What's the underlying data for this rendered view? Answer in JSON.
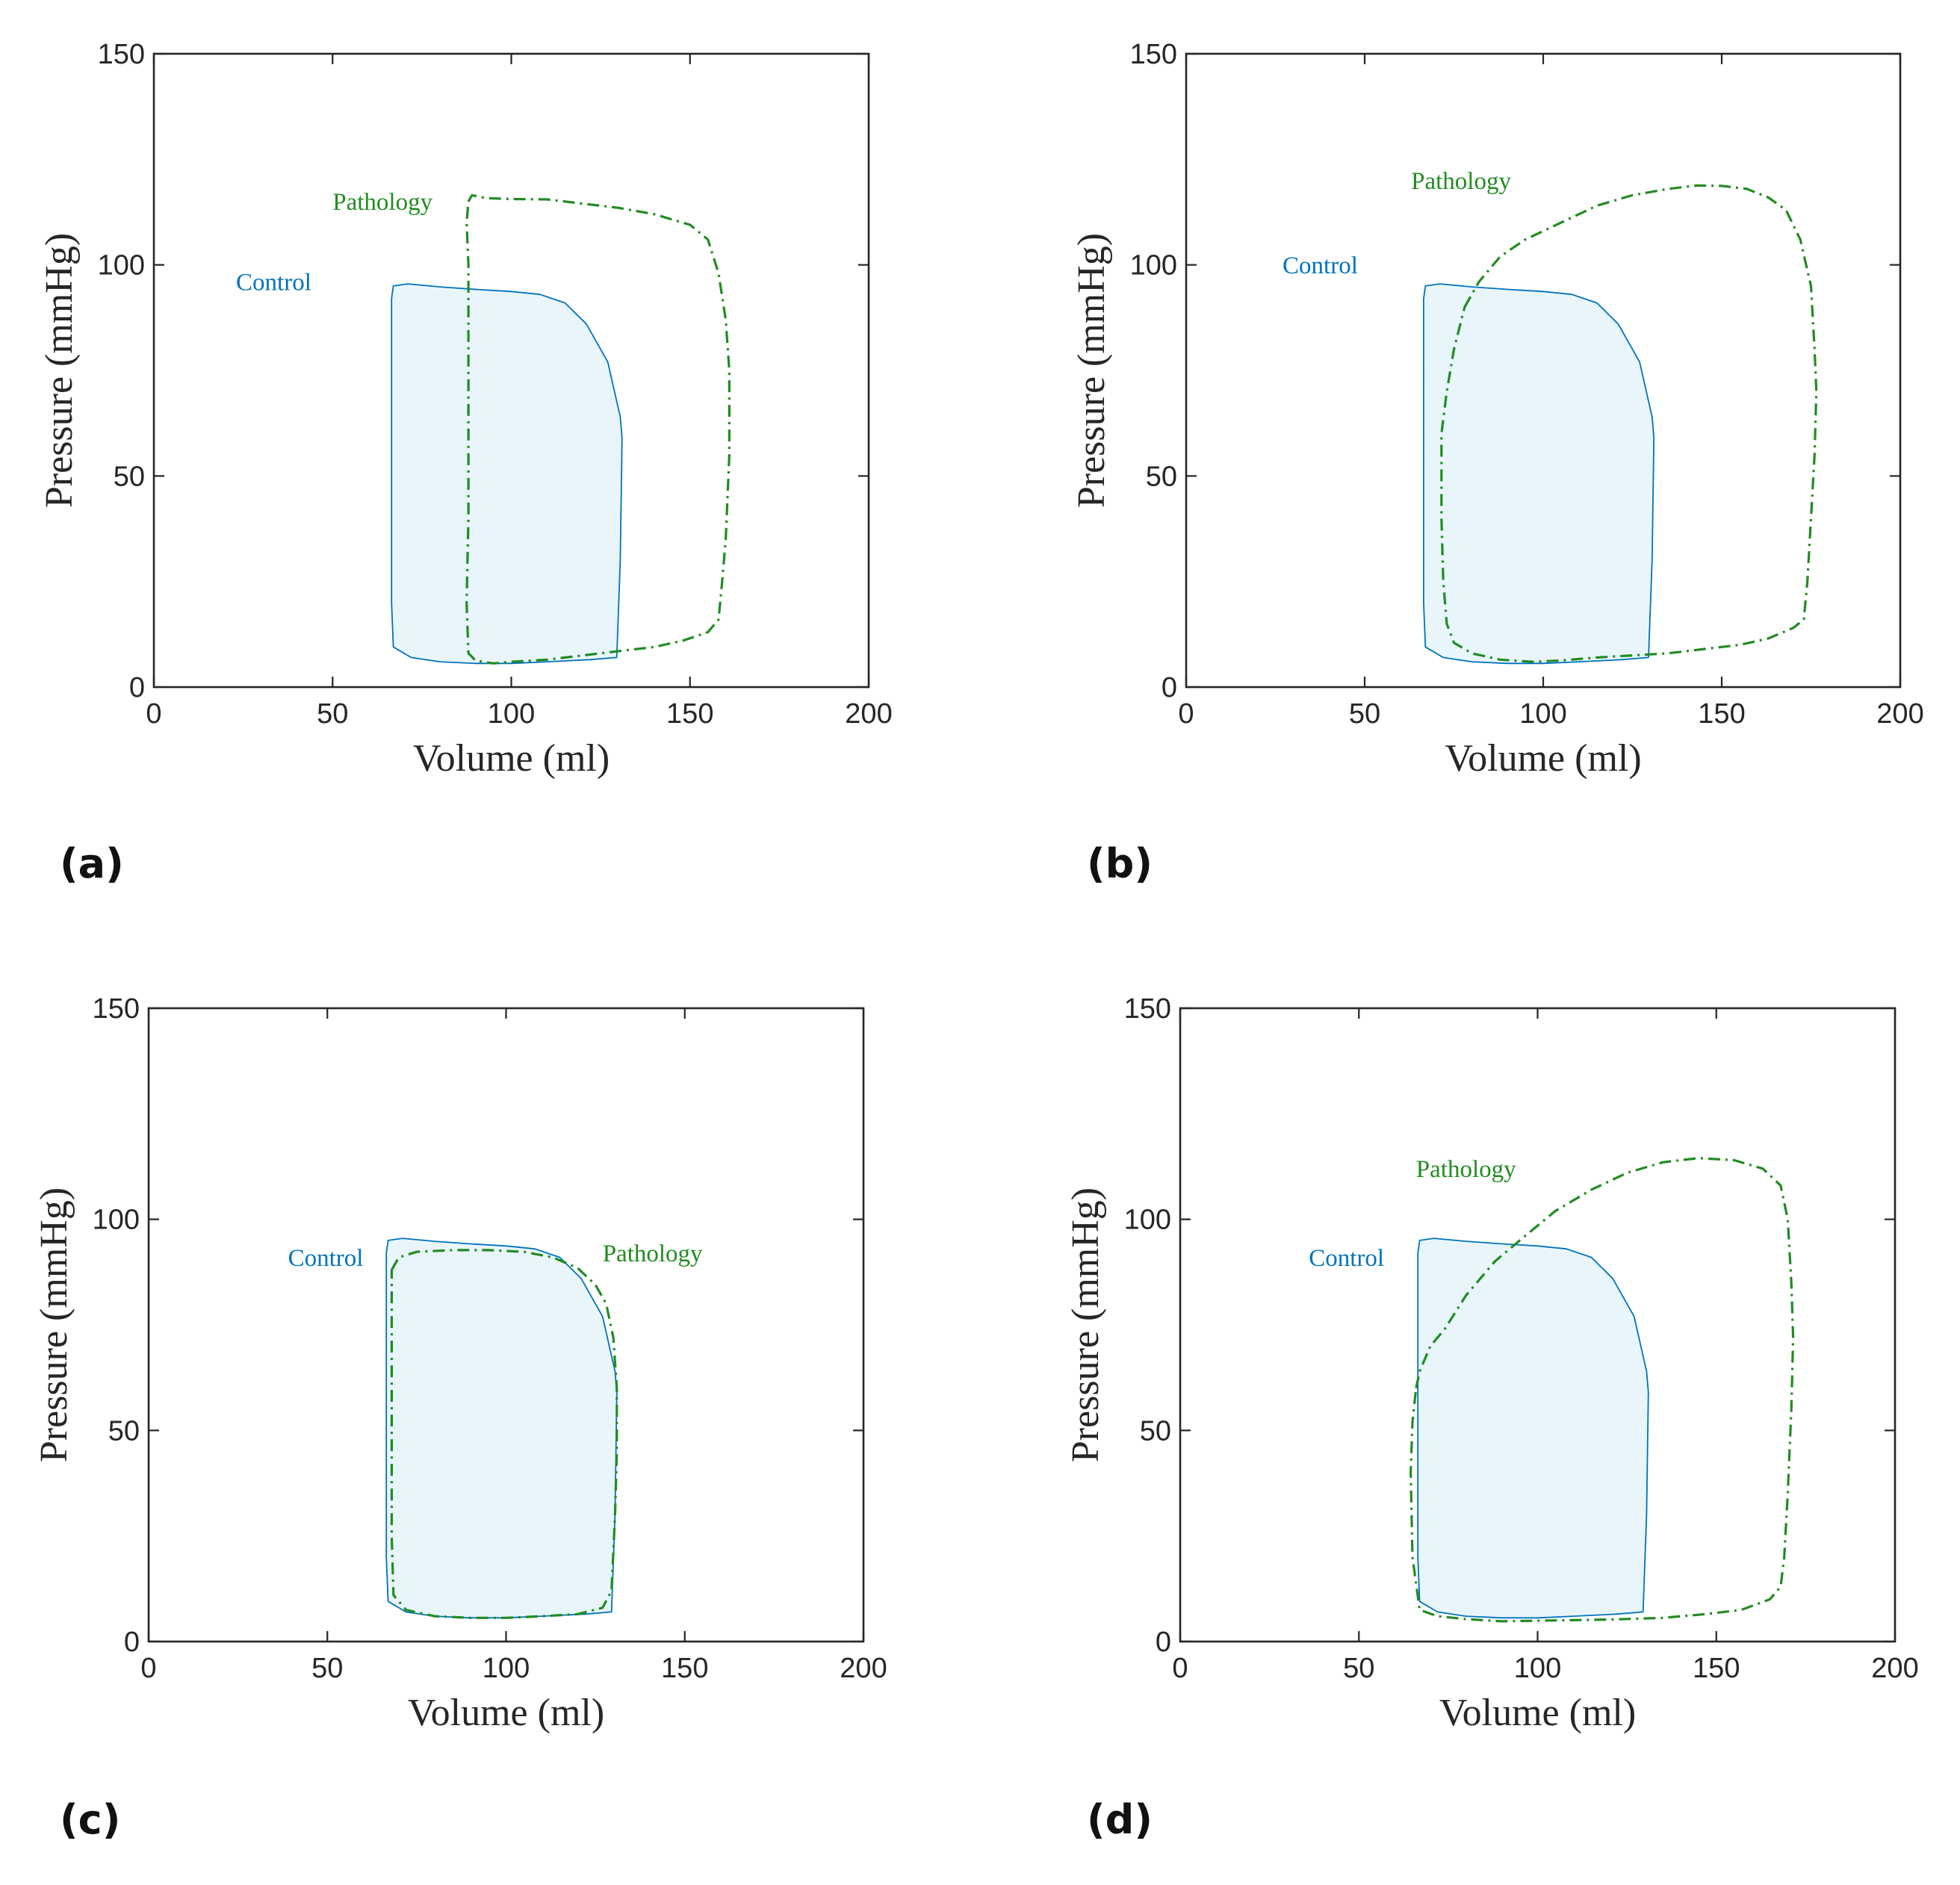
{
  "colors": {
    "control": "#0072bd",
    "control_fill": "#e8f6fb",
    "pathology": "#228b22",
    "axis": "#262626"
  },
  "chart_data": [
    {
      "panel_label": "(a)",
      "type": "line",
      "xlabel": "Volume (ml)",
      "ylabel": "Pressure (mmHg)",
      "xlim": [
        0,
        200
      ],
      "ylim": [
        0,
        150
      ],
      "xticks": [
        0,
        50,
        100,
        150,
        200
      ],
      "yticks": [
        0,
        50,
        100,
        150
      ],
      "series": [
        {
          "name": "Control",
          "label": "Control",
          "label_at": [
            23,
            94
          ],
          "style": "solid-filled",
          "points": [
            [
              67,
              95
            ],
            [
              71,
              95.5
            ],
            [
              80,
              94.8
            ],
            [
              90,
              94.2
            ],
            [
              100,
              93.7
            ],
            [
              108,
              93
            ],
            [
              115,
              91
            ],
            [
              121,
              86
            ],
            [
              127,
              77
            ],
            [
              130.5,
              64
            ],
            [
              131,
              59
            ],
            [
              130.5,
              30
            ],
            [
              129.5,
              7
            ],
            [
              122,
              6.5
            ],
            [
              110,
              6
            ],
            [
              100,
              5.6
            ],
            [
              90,
              5.6
            ],
            [
              80,
              6
            ],
            [
              72,
              7
            ],
            [
              67,
              9.5
            ],
            [
              66.5,
              20
            ],
            [
              66.5,
              50
            ],
            [
              66.5,
              75
            ],
            [
              66.5,
              92
            ],
            [
              67,
              95
            ]
          ]
        },
        {
          "name": "Pathology",
          "label": "Pathology",
          "label_at": [
            50,
            113
          ],
          "style": "dashdot",
          "points": [
            [
              88,
              115
            ],
            [
              89,
              116.5
            ],
            [
              93,
              115.8
            ],
            [
              100,
              115.6
            ],
            [
              110,
              115.5
            ],
            [
              120,
              114.5
            ],
            [
              130,
              113.5
            ],
            [
              140,
              112
            ],
            [
              150,
              109.5
            ],
            [
              155,
              106
            ],
            [
              158,
              98
            ],
            [
              160,
              87
            ],
            [
              161,
              75
            ],
            [
              161,
              55
            ],
            [
              160,
              35
            ],
            [
              159,
              25
            ],
            [
              158,
              16
            ],
            [
              155,
              13
            ],
            [
              148,
              11
            ],
            [
              140,
              9.5
            ],
            [
              130,
              8.5
            ],
            [
              120,
              7.5
            ],
            [
              110,
              6.5
            ],
            [
              100,
              6
            ],
            [
              95,
              5.6
            ],
            [
              90,
              6.3
            ],
            [
              88,
              8
            ],
            [
              87.5,
              20
            ],
            [
              88,
              40
            ],
            [
              88,
              60
            ],
            [
              88,
              80
            ],
            [
              88,
              100
            ],
            [
              87.5,
              110
            ],
            [
              88,
              115
            ]
          ]
        }
      ]
    },
    {
      "panel_label": "(b)",
      "type": "line",
      "xlabel": "Volume (ml)",
      "ylabel": "Pressure (mmHg)",
      "xlim": [
        0,
        200
      ],
      "ylim": [
        0,
        150
      ],
      "xticks": [
        0,
        50,
        100,
        150,
        200
      ],
      "yticks": [
        0,
        50,
        100,
        150
      ],
      "series": [
        {
          "name": "Control",
          "label": "Control",
          "label_at": [
            27,
            98
          ],
          "style": "solid-filled",
          "points": [
            [
              67,
              95
            ],
            [
              71,
              95.5
            ],
            [
              80,
              94.8
            ],
            [
              90,
              94.2
            ],
            [
              100,
              93.7
            ],
            [
              108,
              93
            ],
            [
              115,
              91
            ],
            [
              121,
              86
            ],
            [
              127,
              77
            ],
            [
              130.5,
              64
            ],
            [
              131,
              59
            ],
            [
              130.5,
              30
            ],
            [
              129.5,
              7
            ],
            [
              122,
              6.5
            ],
            [
              110,
              6
            ],
            [
              100,
              5.6
            ],
            [
              90,
              5.6
            ],
            [
              80,
              6
            ],
            [
              72,
              7
            ],
            [
              67,
              9.5
            ],
            [
              66.5,
              20
            ],
            [
              66.5,
              50
            ],
            [
              66.5,
              75
            ],
            [
              66.5,
              92
            ],
            [
              67,
              95
            ]
          ]
        },
        {
          "name": "Pathology",
          "label": "Pathology",
          "label_at": [
            63,
            118
          ],
          "style": "dashdot",
          "points": [
            [
              78,
              90
            ],
            [
              82,
              96
            ],
            [
              88,
              102
            ],
            [
              95,
              106
            ],
            [
              105,
              110
            ],
            [
              115,
              114
            ],
            [
              125,
              116.5
            ],
            [
              135,
              118
            ],
            [
              143,
              118.8
            ],
            [
              150,
              118.7
            ],
            [
              157,
              118
            ],
            [
              163,
              116
            ],
            [
              168,
              113
            ],
            [
              172,
              106
            ],
            [
              175,
              95
            ],
            [
              176,
              80
            ],
            [
              176.5,
              70
            ],
            [
              176,
              55
            ],
            [
              175,
              40
            ],
            [
              174,
              25
            ],
            [
              173,
              16
            ],
            [
              170,
              14
            ],
            [
              163,
              11.5
            ],
            [
              155,
              10
            ],
            [
              145,
              9
            ],
            [
              135,
              8
            ],
            [
              125,
              7.5
            ],
            [
              115,
              7
            ],
            [
              105,
              6.3
            ],
            [
              97,
              6
            ],
            [
              88,
              6.5
            ],
            [
              80,
              8
            ],
            [
              75,
              10.5
            ],
            [
              73,
              15
            ],
            [
              72,
              25
            ],
            [
              71.5,
              40
            ],
            [
              71.5,
              60
            ],
            [
              73,
              70
            ],
            [
              75,
              80
            ],
            [
              78,
              90
            ]
          ]
        }
      ]
    },
    {
      "panel_label": "(c)",
      "type": "line",
      "xlabel": "Volume (ml)",
      "ylabel": "Pressure (mmHg)",
      "xlim": [
        0,
        200
      ],
      "ylim": [
        0,
        150
      ],
      "xticks": [
        0,
        50,
        100,
        150,
        200
      ],
      "yticks": [
        0,
        50,
        100,
        150
      ],
      "series": [
        {
          "name": "Control",
          "label": "Control",
          "label_at": [
            39,
            89
          ],
          "style": "solid-filled",
          "points": [
            [
              67,
              95
            ],
            [
              71,
              95.5
            ],
            [
              80,
              94.8
            ],
            [
              90,
              94.2
            ],
            [
              100,
              93.7
            ],
            [
              108,
              93
            ],
            [
              115,
              91
            ],
            [
              121,
              86
            ],
            [
              127,
              77
            ],
            [
              130.5,
              64
            ],
            [
              131,
              59
            ],
            [
              130.5,
              30
            ],
            [
              129.5,
              7
            ],
            [
              122,
              6.5
            ],
            [
              110,
              6
            ],
            [
              100,
              5.6
            ],
            [
              90,
              5.6
            ],
            [
              80,
              6
            ],
            [
              72,
              7
            ],
            [
              67,
              9.5
            ],
            [
              66.5,
              20
            ],
            [
              66.5,
              50
            ],
            [
              66.5,
              75
            ],
            [
              66.5,
              92
            ],
            [
              67,
              95
            ]
          ]
        },
        {
          "name": "Pathology",
          "label": "Pathology",
          "label_at": [
            127,
            90
          ],
          "style": "dashdot",
          "points": [
            [
              68,
              88
            ],
            [
              70,
              91
            ],
            [
              75,
              92.3
            ],
            [
              85,
              92.7
            ],
            [
              95,
              92.7
            ],
            [
              105,
              92.3
            ],
            [
              113,
              91
            ],
            [
              120,
              88.5
            ],
            [
              125,
              84.5
            ],
            [
              128,
              80
            ],
            [
              130,
              72
            ],
            [
              131,
              60
            ],
            [
              131,
              45
            ],
            [
              130.5,
              30
            ],
            [
              129.5,
              12
            ],
            [
              127,
              8
            ],
            [
              120,
              6.5
            ],
            [
              110,
              6
            ],
            [
              100,
              5.6
            ],
            [
              90,
              5.6
            ],
            [
              80,
              6
            ],
            [
              72,
              7.5
            ],
            [
              68.5,
              11
            ],
            [
              68,
              25
            ],
            [
              68,
              50
            ],
            [
              68,
              75
            ],
            [
              68,
              88
            ]
          ]
        }
      ]
    },
    {
      "panel_label": "(d)",
      "type": "line",
      "xlabel": "Volume (ml)",
      "ylabel": "Pressure (mmHg)",
      "xlim": [
        0,
        200
      ],
      "ylim": [
        0,
        150
      ],
      "xticks": [
        0,
        50,
        100,
        150,
        200
      ],
      "yticks": [
        0,
        50,
        100,
        150
      ],
      "series": [
        {
          "name": "Control",
          "label": "Control",
          "label_at": [
            36,
            89
          ],
          "style": "solid-filled",
          "points": [
            [
              67,
              95
            ],
            [
              71,
              95.5
            ],
            [
              80,
              94.8
            ],
            [
              90,
              94.2
            ],
            [
              100,
              93.7
            ],
            [
              108,
              93
            ],
            [
              115,
              91
            ],
            [
              121,
              86
            ],
            [
              127,
              77
            ],
            [
              130.5,
              64
            ],
            [
              131,
              59
            ],
            [
              130.5,
              30
            ],
            [
              129.5,
              7
            ],
            [
              122,
              6.5
            ],
            [
              110,
              6
            ],
            [
              100,
              5.6
            ],
            [
              90,
              5.6
            ],
            [
              80,
              6
            ],
            [
              72,
              7
            ],
            [
              67,
              9.5
            ],
            [
              66.5,
              20
            ],
            [
              66.5,
              50
            ],
            [
              66.5,
              75
            ],
            [
              66.5,
              92
            ],
            [
              67,
              95
            ]
          ]
        },
        {
          "name": "Pathology",
          "label": "Pathology",
          "label_at": [
            66,
            110
          ],
          "style": "dashdot",
          "points": [
            [
              66,
              60
            ],
            [
              67,
              64
            ],
            [
              70,
              70
            ],
            [
              74,
              74
            ],
            [
              80,
              82
            ],
            [
              88,
              90
            ],
            [
              95,
              95
            ],
            [
              105,
              102
            ],
            [
              115,
              107
            ],
            [
              125,
              111
            ],
            [
              135,
              113.5
            ],
            [
              145,
              114.5
            ],
            [
              155,
              114
            ],
            [
              163,
              112
            ],
            [
              168,
              108
            ],
            [
              170,
              100
            ],
            [
              171,
              85
            ],
            [
              171.5,
              72
            ],
            [
              171,
              55
            ],
            [
              170,
              35
            ],
            [
              169,
              20
            ],
            [
              168,
              13
            ],
            [
              165,
              10
            ],
            [
              157,
              7.5
            ],
            [
              147,
              6.5
            ],
            [
              135,
              5.6
            ],
            [
              120,
              5.2
            ],
            [
              105,
              5
            ],
            [
              90,
              4.8
            ],
            [
              80,
              5.3
            ],
            [
              72,
              6
            ],
            [
              67,
              7.5
            ],
            [
              65,
              20
            ],
            [
              64.5,
              40
            ],
            [
              65,
              52
            ],
            [
              66,
              60
            ]
          ]
        }
      ]
    }
  ]
}
